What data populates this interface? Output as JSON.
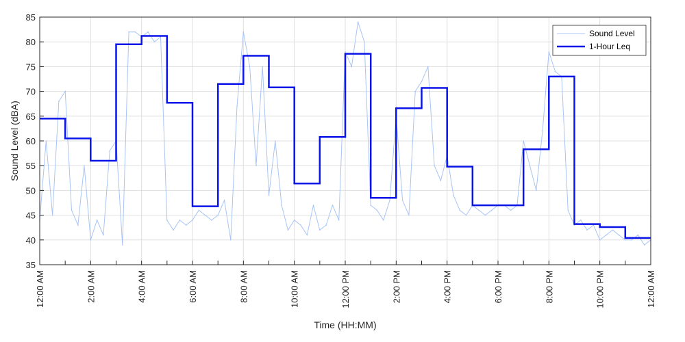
{
  "chart_data": {
    "type": "line",
    "xlabel": "Time (HH:MM)",
    "ylabel": "Sound Level (dBA)",
    "xlim": [
      0,
      24
    ],
    "ylim": [
      35,
      85
    ],
    "y_ticks": [
      35,
      40,
      45,
      50,
      55,
      60,
      65,
      70,
      75,
      80,
      85
    ],
    "x_ticks": [
      0,
      2,
      4,
      6,
      8,
      10,
      12,
      14,
      16,
      18,
      20,
      22,
      24
    ],
    "x_tick_labels": [
      "12:00 AM",
      "2:00 AM",
      "4:00 AM",
      "6:00 AM",
      "8:00 AM",
      "10:00 AM",
      "12:00 PM",
      "2:00 PM",
      "4:00 PM",
      "6:00 PM",
      "8:00 PM",
      "10:00 PM",
      "12:00 AM"
    ],
    "grid": true,
    "legend_position": "top-right",
    "series": [
      {
        "name": "Sound Level",
        "style": "thin",
        "color": "#a8c4f5",
        "x": [
          0,
          0.25,
          0.5,
          0.75,
          1,
          1.25,
          1.5,
          1.75,
          2,
          2.25,
          2.5,
          2.75,
          3,
          3.25,
          3.5,
          3.75,
          4,
          4.25,
          4.5,
          4.75,
          5,
          5.25,
          5.5,
          5.75,
          6,
          6.25,
          6.5,
          6.75,
          7,
          7.25,
          7.5,
          7.75,
          8,
          8.25,
          8.5,
          8.75,
          9,
          9.25,
          9.5,
          9.75,
          10,
          10.25,
          10.5,
          10.75,
          11,
          11.25,
          11.5,
          11.75,
          12,
          12.25,
          12.5,
          12.75,
          13,
          13.25,
          13.5,
          13.75,
          14,
          14.25,
          14.5,
          14.75,
          15,
          15.25,
          15.5,
          15.75,
          16,
          16.25,
          16.5,
          16.75,
          17,
          17.25,
          17.5,
          17.75,
          18,
          18.25,
          18.5,
          18.75,
          19,
          19.25,
          19.5,
          19.75,
          20,
          20.25,
          20.5,
          20.75,
          21,
          21.25,
          21.5,
          21.75,
          22,
          22.25,
          22.5,
          22.75,
          23,
          23.25,
          23.5,
          23.75,
          24
        ],
        "values": [
          44,
          60,
          45,
          68,
          70,
          46,
          43,
          55,
          40,
          44,
          41,
          58,
          60,
          39,
          82,
          82,
          81,
          82,
          80,
          81,
          44,
          42,
          44,
          43,
          44,
          46,
          45,
          44,
          45,
          48,
          40,
          67,
          82,
          75,
          55,
          75,
          49,
          60,
          47,
          42,
          44,
          43,
          41,
          47,
          42,
          43,
          47,
          44,
          78,
          75,
          84,
          80,
          47,
          46,
          44,
          48,
          65,
          48,
          45,
          70,
          72,
          75,
          55,
          52,
          57,
          49,
          46,
          45,
          47,
          46,
          45,
          46,
          47,
          47,
          46,
          47,
          60,
          55,
          50,
          62,
          78,
          74,
          73,
          46,
          43,
          44,
          42,
          43,
          40,
          41,
          42,
          41,
          40,
          40,
          41,
          39,
          40
        ]
      },
      {
        "name": "1-Hour Leq",
        "style": "step",
        "color": "#0a14e8",
        "x": [
          0,
          1,
          2,
          3,
          4,
          5,
          6,
          7,
          8,
          9,
          10,
          11,
          12,
          13,
          14,
          15,
          16,
          17,
          18,
          19,
          20,
          21,
          22,
          23
        ],
        "values": [
          64.5,
          60.5,
          56,
          79.5,
          81.2,
          67.7,
          46.8,
          71.5,
          77.2,
          70.8,
          51.4,
          60.8,
          77.6,
          48.5,
          66.6,
          70.7,
          54.8,
          47,
          47,
          58.3,
          73,
          43.2,
          42.6,
          40.4
        ]
      }
    ]
  }
}
